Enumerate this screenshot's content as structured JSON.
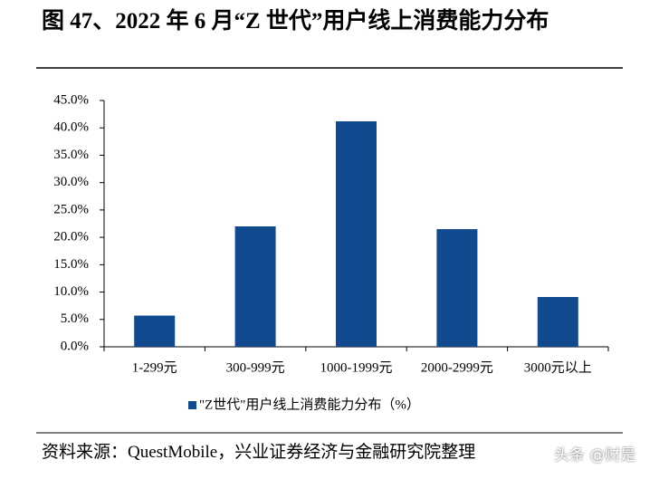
{
  "chart_data": {
    "type": "bar",
    "title": "图 47、2022 年 6 月“Z 世代”用户线上消费能力分布",
    "categories": [
      "1-299元",
      "300-999元",
      "1000-1999元",
      "2000-2999元",
      "3000元以上"
    ],
    "series": [
      {
        "name": "\"Z世代\"用户线上消费能力分布（%）",
        "color": "#114a8e",
        "values": [
          5.7,
          22.0,
          41.2,
          21.5,
          9.1
        ]
      }
    ],
    "ylim": [
      0,
      45
    ],
    "yticks": [
      {
        "value": 0,
        "label": "0.0%"
      },
      {
        "value": 5,
        "label": "5.0%"
      },
      {
        "value": 10,
        "label": "10.0%"
      },
      {
        "value": 15,
        "label": "15.0%"
      },
      {
        "value": 20,
        "label": "20.0%"
      },
      {
        "value": 25,
        "label": "25.0%"
      },
      {
        "value": 30,
        "label": "30.0%"
      },
      {
        "value": 35,
        "label": "35.0%"
      },
      {
        "value": 40,
        "label": "40.0%"
      },
      {
        "value": 45,
        "label": "45.0%"
      }
    ],
    "legend": "bottom",
    "source": "资料来源：QuestMobile，兴业证券经济与金融研究院整理",
    "watermark": "头条 @财是"
  }
}
